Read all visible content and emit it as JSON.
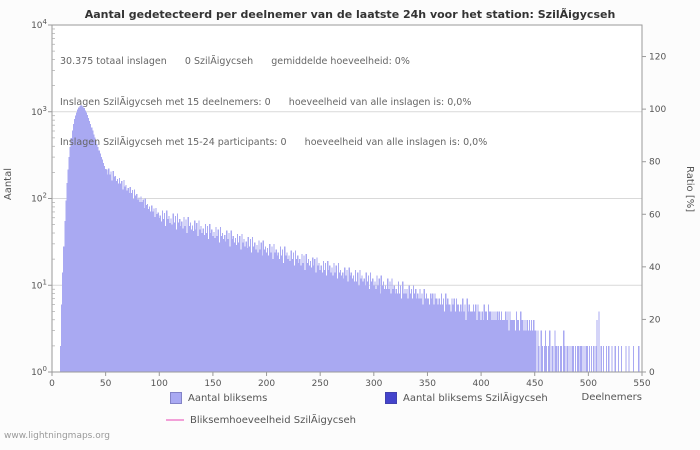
{
  "page": {
    "title": "Aantal gedetecteerd per deelnemer van de laatste 24h voor het station: SzilÃigycseh",
    "watermark": "www.lightningmaps.org"
  },
  "annotations": {
    "line1": "30.375 totaal inslagen      0 SzilÃigycseh      gemiddelde hoeveelheid: 0%",
    "line2": "Inslagen SzilÃigycseh met 15 deelnemers: 0      hoeveelheid van alle inslagen is: 0,0%",
    "line3": "Inslagen SzilÃigycseh met 15-24 participants: 0      hoeveelheid van alle inslagen is: 0,0%"
  },
  "axes": {
    "x_label": "Deelnemers",
    "y_left_label": "Aantal",
    "y_right_label": "Ratio [%]",
    "x_ticks": [
      0,
      50,
      100,
      150,
      200,
      250,
      300,
      350,
      400,
      450,
      500,
      550
    ],
    "y_left_ticks": [
      "10^0",
      "10^1",
      "10^2",
      "10^3",
      "10^4"
    ],
    "y_right_ticks": [
      0,
      20,
      40,
      60,
      80,
      100,
      120
    ]
  },
  "legend": {
    "items": [
      {
        "label": "Aantal bliksems",
        "color": "#a9a9f2",
        "type": "box"
      },
      {
        "label": "Aantal bliksems SzilÃigycseh",
        "color": "#4444cc",
        "type": "box"
      },
      {
        "label": "Bliksemhoeveelheid SzilÃigycseh",
        "color": "#f2a0d8",
        "type": "line"
      }
    ]
  },
  "chart_data": {
    "type": "bar",
    "title": "Aantal gedetecteerd per deelnemer van de laatste 24h voor het station: SzilÃigycseh",
    "xlabel": "Deelnemers",
    "ylabel": "Aantal",
    "ylabel_right": "Ratio [%]",
    "y_scale": "log10",
    "ylim": [
      1,
      10000
    ],
    "xlim": [
      0,
      550
    ],
    "ylim_right": [
      0,
      132
    ],
    "grid": "horizontal-decades",
    "legend_position": "bottom",
    "colors": {
      "bars": "#a9a9f2",
      "station_bars": "#4444cc",
      "ratio_line": "#f2a0d8",
      "grid": "#d9d9d9",
      "axis": "#9a9a9a",
      "tick_text": "#555555"
    },
    "series": [
      {
        "name": "Aantal bliksems",
        "color": "#a9a9f2",
        "x_unit": "deelnemers (0-550)",
        "values": [
          0,
          0,
          0,
          0,
          0,
          0,
          0,
          0,
          2,
          6,
          14,
          28,
          55,
          95,
          150,
          215,
          300,
          395,
          500,
          610,
          720,
          820,
          905,
          980,
          1060,
          1120,
          1170,
          1200,
          1185,
          1150,
          1100,
          1040,
          975,
          915,
          850,
          785,
          720,
          660,
          605,
          550,
          505,
          460,
          425,
          390,
          358,
          330,
          302,
          280,
          258,
          238,
          220,
          215,
          189,
          221,
          190,
          204,
          162,
          208,
          176,
          182,
          159,
          168,
          148,
          173,
          148,
          160,
          127,
          163,
          138,
          143,
          124,
          132,
          116,
          136,
          116,
          125,
          99,
          127,
          108,
          112,
          97,
          103,
          91,
          106,
          91,
          98,
          78,
          100,
          84,
          87,
          76,
          81,
          71,
          83,
          71,
          77,
          61,
          78,
          66,
          69,
          60,
          64,
          54,
          73,
          58,
          68,
          48,
          73,
          58,
          63,
          52,
          59,
          50,
          67,
          53,
          63,
          44,
          67,
          53,
          58,
          48,
          54,
          45,
          61,
          48,
          57,
          40,
          61,
          48,
          53,
          44,
          49,
          42,
          56,
          44,
          52,
          37,
          56,
          44,
          48,
          40,
          45,
          38,
          51,
          40,
          48,
          34,
          51,
          40,
          44,
          37,
          41,
          35,
          47,
          37,
          44,
          31,
          47,
          37,
          40,
          34,
          38,
          32,
          43,
          34,
          40,
          28,
          43,
          34,
          37,
          31,
          35,
          29,
          39,
          31,
          37,
          26,
          39,
          31,
          34,
          28,
          32,
          27,
          36,
          28,
          34,
          24,
          36,
          28,
          31,
          26,
          29,
          24,
          33,
          26,
          31,
          22,
          33,
          26,
          28,
          24,
          27,
          22,
          30,
          24,
          28,
          20,
          30,
          24,
          26,
          22,
          24,
          20,
          28,
          22,
          26,
          18,
          28,
          22,
          24,
          20,
          22,
          19,
          25,
          20,
          24,
          17,
          25,
          20,
          22,
          18,
          20,
          17,
          23,
          18,
          22,
          15,
          23,
          18,
          20,
          17,
          19,
          16,
          21,
          17,
          20,
          14,
          21,
          17,
          18,
          15,
          17,
          14,
          19,
          15,
          18,
          13,
          19,
          15,
          17,
          14,
          16,
          13,
          18,
          14,
          17,
          12,
          18,
          14,
          15,
          13,
          14,
          12,
          16,
          13,
          15,
          11,
          16,
          13,
          14,
          12,
          13,
          11,
          15,
          11,
          14,
          10,
          15,
          12,
          13,
          11,
          12,
          10,
          14,
          11,
          13,
          9,
          14,
          11,
          12,
          10,
          11,
          9,
          13,
          10,
          12,
          8,
          13,
          10,
          11,
          9,
          10,
          9,
          12,
          9,
          11,
          8,
          12,
          9,
          10,
          8,
          9,
          8,
          11,
          8,
          10,
          7,
          11,
          8,
          9,
          8,
          9,
          7,
          10,
          8,
          9,
          7,
          10,
          8,
          9,
          7,
          8,
          7,
          9,
          7,
          8,
          6,
          9,
          7,
          8,
          7,
          7,
          6,
          8,
          7,
          8,
          6,
          8,
          7,
          7,
          6,
          7,
          6,
          8,
          6,
          7,
          5,
          8,
          6,
          7,
          6,
          6,
          5,
          7,
          6,
          7,
          5,
          7,
          6,
          6,
          5,
          6,
          5,
          7,
          5,
          6,
          4,
          7,
          5,
          6,
          5,
          5,
          5,
          6,
          5,
          6,
          4,
          6,
          5,
          5,
          4,
          5,
          4,
          6,
          5,
          5,
          4,
          6,
          5,
          5,
          4,
          5,
          4,
          5,
          4,
          5,
          4,
          5,
          4,
          5,
          4,
          4,
          4,
          5,
          4,
          5,
          3,
          5,
          4,
          4,
          4,
          4,
          3,
          5,
          4,
          4,
          3,
          5,
          4,
          4,
          3,
          4,
          3,
          4,
          3,
          4,
          3,
          4,
          3,
          4,
          3,
          3,
          0,
          3,
          2,
          0,
          3,
          2,
          0,
          2,
          3,
          2,
          0,
          2,
          3,
          0,
          2,
          2,
          0,
          3,
          2,
          0,
          2,
          0,
          2,
          2,
          0,
          3,
          2,
          0,
          2,
          2,
          0,
          2,
          0,
          2,
          2,
          0,
          2,
          0,
          2,
          2,
          0,
          2,
          2,
          0,
          2,
          0,
          2,
          2,
          0,
          2,
          0,
          2,
          0,
          2,
          0,
          2,
          4,
          0,
          5,
          0,
          2,
          0,
          2,
          0,
          0,
          2,
          0,
          2,
          0,
          0,
          2,
          0,
          0,
          2,
          0,
          0,
          2,
          0,
          0,
          2,
          0,
          0,
          0,
          2,
          0,
          0,
          2,
          0,
          0,
          0,
          2,
          0,
          0,
          0,
          0,
          2,
          0,
          0,
          2
        ]
      },
      {
        "name": "Aantal bliksems SzilÃigycseh",
        "color": "#4444cc",
        "constant_value": 0
      },
      {
        "name": "Bliksemhoeveelheid SzilÃigycseh",
        "color": "#f2a0d8",
        "axis": "right",
        "constant_value": 0
      }
    ]
  }
}
